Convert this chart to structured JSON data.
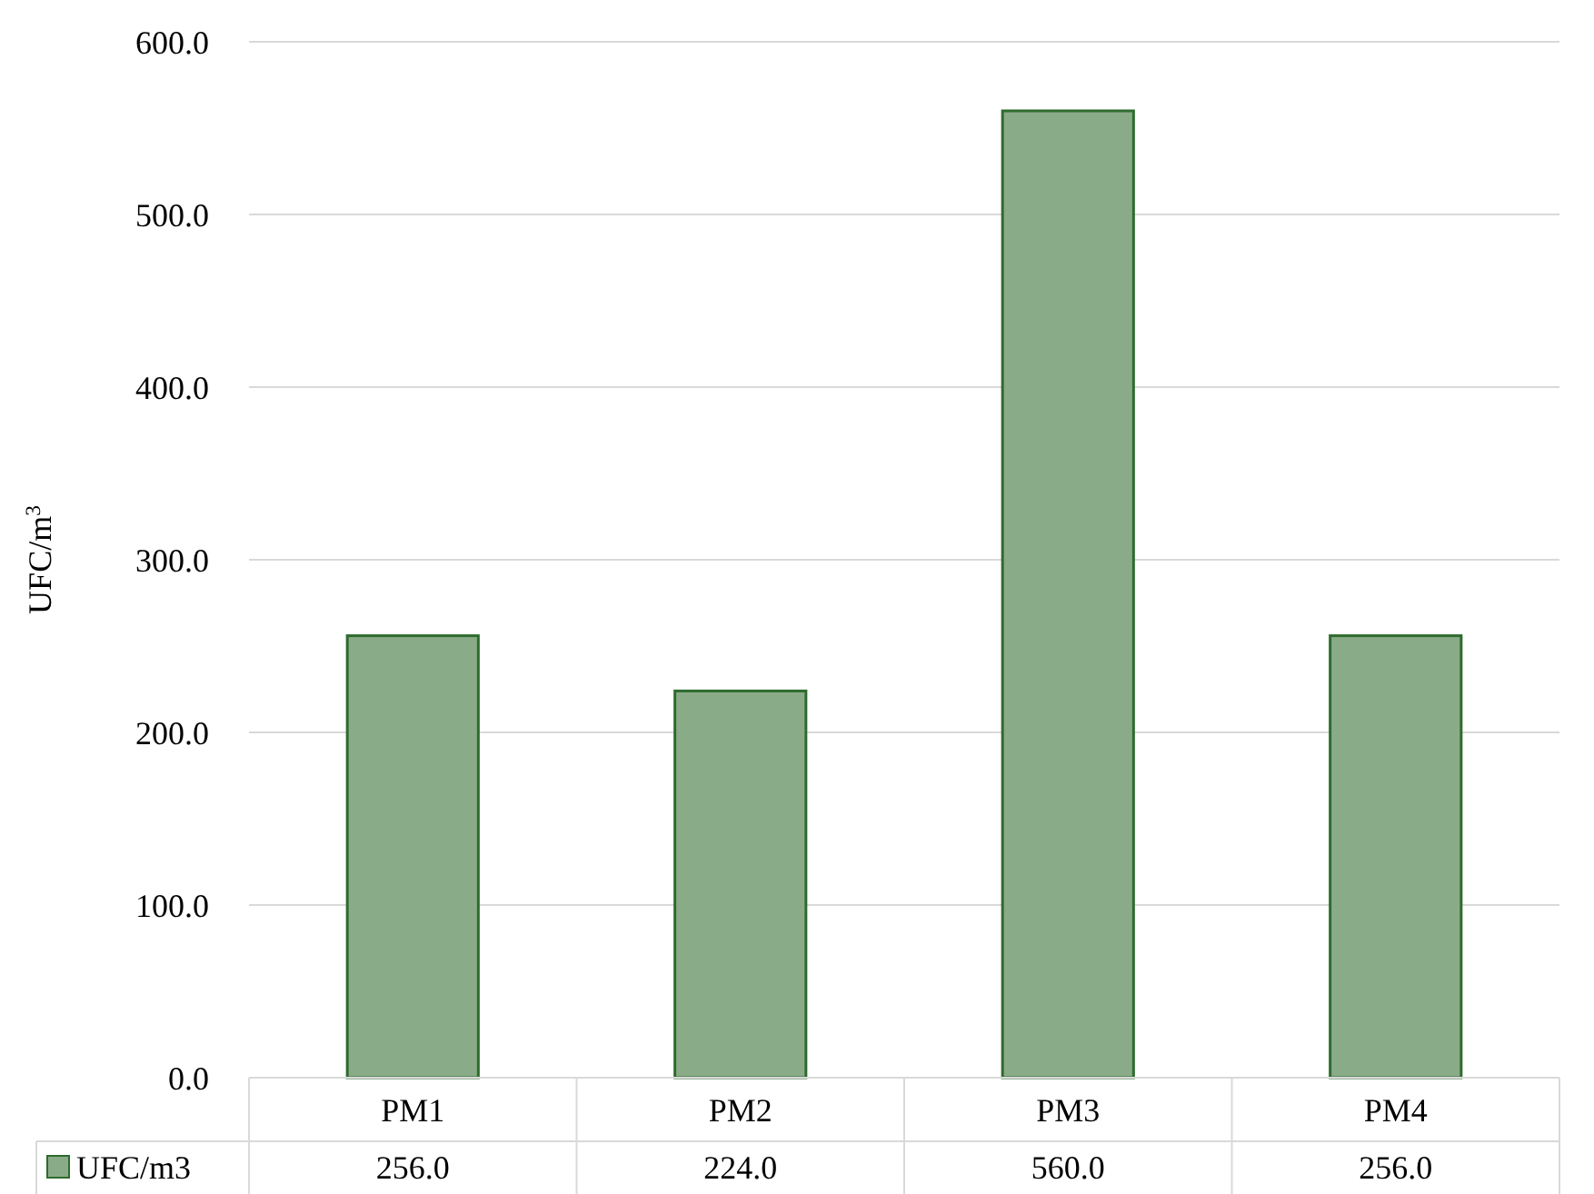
{
  "chart_data": {
    "type": "bar",
    "ylabel": "UFC/m$^{3}$",
    "categories": [
      "PM1",
      "PM2",
      "PM3",
      "PM4"
    ],
    "series": [
      {
        "name": "UFC/m3",
        "color": "#8aab88",
        "values": [
          256,
          224,
          560,
          256
        ],
        "value_labels": [
          "256.0",
          "224.0",
          "560.0",
          "256.0"
        ]
      }
    ],
    "ylim": [
      0,
      600
    ],
    "yticks": [
      {
        "value": 0,
        "label": "0.0"
      },
      {
        "value": 100,
        "label": "100.0"
      },
      {
        "value": 200,
        "label": "200.0"
      },
      {
        "value": 300,
        "label": "300.0"
      },
      {
        "value": 400,
        "label": "400.0"
      },
      {
        "value": 500,
        "label": "500.0"
      },
      {
        "value": 600,
        "label": "600.0"
      }
    ],
    "grid": "y",
    "legend": "bottom"
  }
}
